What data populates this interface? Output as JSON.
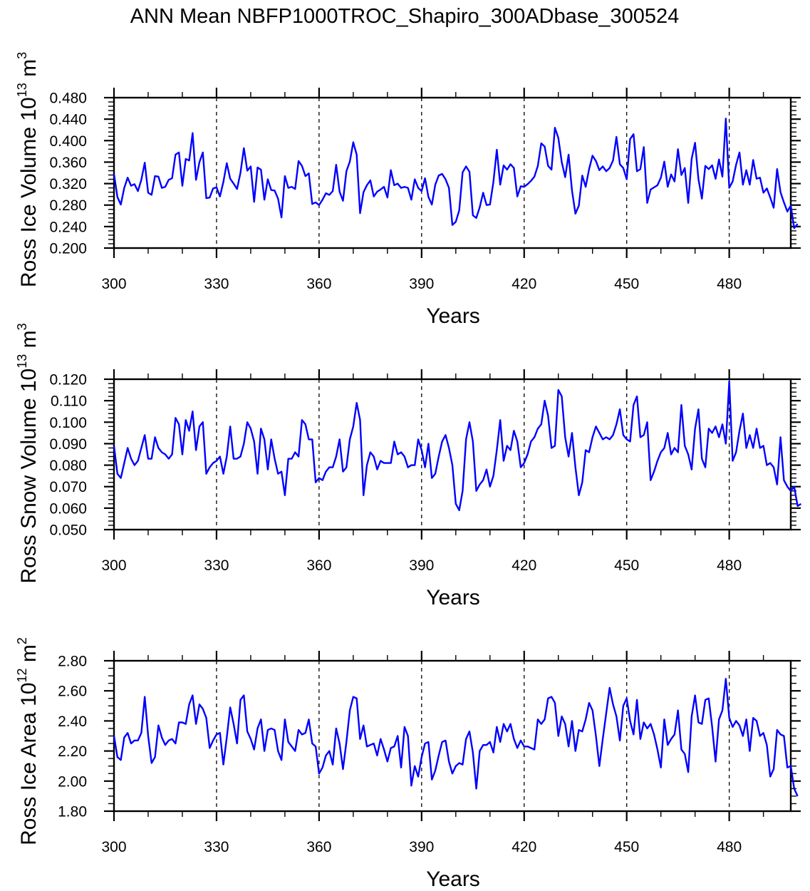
{
  "chart_data": [
    {
      "type": "line",
      "title": "ANN Mean NBFP1000TROC_Shapiro_300ADbase_300524",
      "xlabel": "Years",
      "ylabel": {
        "text": "Ross Ice Volume 10",
        "exponent": "13",
        "unit": " m",
        "unit_exponent": "3"
      },
      "xlim": [
        300,
        498
      ],
      "ylim": [
        0.2,
        0.48
      ],
      "x_ticks": [
        300,
        330,
        360,
        390,
        420,
        450,
        480
      ],
      "x_tick_labels": [
        "300",
        "330",
        "360",
        "390",
        "420",
        "450",
        "480"
      ],
      "y_ticks": [
        0.2,
        0.24,
        0.28,
        0.32,
        0.36,
        0.4,
        0.44,
        0.48
      ],
      "y_tick_labels": [
        "0.200",
        "0.240",
        "0.280",
        "0.320",
        "0.360",
        "0.400",
        "0.440",
        "0.480"
      ],
      "y_minor_step": 0.008,
      "x_minor_step": 10,
      "reference_lines_x": [
        330,
        360,
        390,
        420,
        450,
        480
      ],
      "series": [
        {
          "name": "Ross Ice Volume",
          "color": "#0000ff",
          "x_start": 300,
          "x_step": 1,
          "values": [
            0.338,
            0.295,
            0.281,
            0.312,
            0.331,
            0.316,
            0.319,
            0.306,
            0.327,
            0.359,
            0.303,
            0.299,
            0.334,
            0.333,
            0.312,
            0.314,
            0.327,
            0.33,
            0.374,
            0.378,
            0.316,
            0.366,
            0.363,
            0.414,
            0.327,
            0.36,
            0.378,
            0.293,
            0.294,
            0.311,
            0.313,
            0.296,
            0.323,
            0.358,
            0.329,
            0.32,
            0.31,
            0.34,
            0.386,
            0.344,
            0.352,
            0.286,
            0.35,
            0.346,
            0.29,
            0.328,
            0.308,
            0.307,
            0.292,
            0.257,
            0.334,
            0.312,
            0.314,
            0.31,
            0.362,
            0.353,
            0.334,
            0.339,
            0.282,
            0.285,
            0.28,
            0.29,
            0.302,
            0.299,
            0.306,
            0.355,
            0.305,
            0.288,
            0.343,
            0.361,
            0.397,
            0.374,
            0.265,
            0.304,
            0.317,
            0.326,
            0.296,
            0.305,
            0.309,
            0.314,
            0.294,
            0.345,
            0.317,
            0.32,
            0.312,
            0.314,
            0.312,
            0.29,
            0.328,
            0.312,
            0.306,
            0.33,
            0.295,
            0.281,
            0.318,
            0.335,
            0.338,
            0.328,
            0.312,
            0.243,
            0.249,
            0.27,
            0.341,
            0.352,
            0.342,
            0.261,
            0.256,
            0.276,
            0.303,
            0.28,
            0.281,
            0.323,
            0.383,
            0.318,
            0.354,
            0.346,
            0.356,
            0.349,
            0.296,
            0.315,
            0.314,
            0.319,
            0.325,
            0.333,
            0.353,
            0.395,
            0.389,
            0.353,
            0.346,
            0.424,
            0.405,
            0.36,
            0.332,
            0.374,
            0.307,
            0.264,
            0.279,
            0.335,
            0.314,
            0.347,
            0.372,
            0.362,
            0.345,
            0.352,
            0.343,
            0.349,
            0.363,
            0.407,
            0.356,
            0.349,
            0.328,
            0.403,
            0.412,
            0.343,
            0.347,
            0.388,
            0.284,
            0.309,
            0.313,
            0.317,
            0.331,
            0.361,
            0.314,
            0.337,
            0.324,
            0.384,
            0.336,
            0.349,
            0.284,
            0.366,
            0.396,
            0.328,
            0.292,
            0.353,
            0.347,
            0.354,
            0.329,
            0.365,
            0.333,
            0.441,
            0.312,
            0.324,
            0.355,
            0.378,
            0.318,
            0.345,
            0.318,
            0.364,
            0.329,
            0.331,
            0.303,
            0.311,
            0.294,
            0.275,
            0.347,
            0.304,
            0.285,
            0.268,
            0.279,
            0.237,
            0.245
          ]
        }
      ]
    },
    {
      "type": "line",
      "xlabel": "Years",
      "ylabel": {
        "text": "Ross Snow Volume 10",
        "exponent": "13",
        "unit": " m",
        "unit_exponent": "3"
      },
      "xlim": [
        300,
        498
      ],
      "ylim": [
        0.05,
        0.12
      ],
      "x_ticks": [
        300,
        330,
        360,
        390,
        420,
        450,
        480
      ],
      "x_tick_labels": [
        "300",
        "330",
        "360",
        "390",
        "420",
        "450",
        "480"
      ],
      "y_ticks": [
        0.05,
        0.06,
        0.07,
        0.08,
        0.09,
        0.1,
        0.11,
        0.12
      ],
      "y_tick_labels": [
        "0.050",
        "0.060",
        "0.070",
        "0.080",
        "0.090",
        "0.100",
        "0.110",
        "0.120"
      ],
      "y_minor_step": 0.002,
      "x_minor_step": 10,
      "reference_lines_x": [
        330,
        360,
        390,
        420,
        450,
        480
      ],
      "series": [
        {
          "name": "Ross Snow Volume",
          "color": "#0000ff",
          "x_start": 300,
          "x_step": 1,
          "values": [
            0.089,
            0.076,
            0.074,
            0.081,
            0.088,
            0.083,
            0.08,
            0.082,
            0.088,
            0.094,
            0.083,
            0.083,
            0.093,
            0.088,
            0.086,
            0.085,
            0.083,
            0.085,
            0.102,
            0.099,
            0.085,
            0.101,
            0.096,
            0.105,
            0.087,
            0.098,
            0.1,
            0.076,
            0.079,
            0.081,
            0.082,
            0.084,
            0.076,
            0.084,
            0.098,
            0.083,
            0.083,
            0.084,
            0.09,
            0.1,
            0.097,
            0.091,
            0.076,
            0.097,
            0.092,
            0.078,
            0.092,
            0.083,
            0.076,
            0.077,
            0.066,
            0.083,
            0.083,
            0.086,
            0.084,
            0.101,
            0.099,
            0.092,
            0.092,
            0.072,
            0.074,
            0.073,
            0.077,
            0.079,
            0.079,
            0.084,
            0.092,
            0.077,
            0.079,
            0.092,
            0.098,
            0.109,
            0.101,
            0.066,
            0.08,
            0.086,
            0.084,
            0.078,
            0.082,
            0.081,
            0.081,
            0.081,
            0.091,
            0.085,
            0.086,
            0.084,
            0.079,
            0.08,
            0.08,
            0.092,
            0.087,
            0.079,
            0.09,
            0.074,
            0.076,
            0.084,
            0.091,
            0.094,
            0.088,
            0.08,
            0.062,
            0.059,
            0.068,
            0.092,
            0.1,
            0.091,
            0.068,
            0.071,
            0.073,
            0.078,
            0.07,
            0.075,
            0.087,
            0.101,
            0.082,
            0.089,
            0.087,
            0.096,
            0.091,
            0.079,
            0.081,
            0.085,
            0.091,
            0.093,
            0.097,
            0.099,
            0.11,
            0.103,
            0.088,
            0.089,
            0.115,
            0.112,
            0.093,
            0.084,
            0.095,
            0.079,
            0.066,
            0.072,
            0.087,
            0.086,
            0.093,
            0.098,
            0.095,
            0.092,
            0.093,
            0.092,
            0.094,
            0.099,
            0.106,
            0.094,
            0.092,
            0.091,
            0.108,
            0.112,
            0.093,
            0.094,
            0.1,
            0.073,
            0.077,
            0.082,
            0.086,
            0.088,
            0.095,
            0.085,
            0.088,
            0.086,
            0.108,
            0.089,
            0.085,
            0.078,
            0.097,
            0.106,
            0.083,
            0.079,
            0.097,
            0.095,
            0.098,
            0.093,
            0.099,
            0.09,
            0.119,
            0.082,
            0.086,
            0.096,
            0.104,
            0.088,
            0.094,
            0.088,
            0.097,
            0.088,
            0.089,
            0.08,
            0.081,
            0.079,
            0.071,
            0.093,
            0.073,
            0.07,
            0.068,
            0.07,
            0.061,
            0.062
          ]
        }
      ]
    },
    {
      "type": "line",
      "xlabel": "Years",
      "ylabel": {
        "text": "Ross Ice Area 10",
        "exponent": "12",
        "unit": " m",
        "unit_exponent": "2"
      },
      "xlim": [
        300,
        498
      ],
      "ylim": [
        1.8,
        2.8
      ],
      "x_ticks": [
        300,
        330,
        360,
        390,
        420,
        450,
        480
      ],
      "x_tick_labels": [
        "300",
        "330",
        "360",
        "390",
        "420",
        "450",
        "480"
      ],
      "y_ticks": [
        1.8,
        2.0,
        2.2,
        2.4,
        2.6,
        2.8
      ],
      "y_tick_labels": [
        "1.80",
        "2.00",
        "2.20",
        "2.40",
        "2.60",
        "2.80"
      ],
      "y_minor_step": 0.05,
      "x_minor_step": 10,
      "reference_lines_x": [
        330,
        360,
        390,
        420,
        450,
        480
      ],
      "series": [
        {
          "name": "Ross Ice Area",
          "color": "#0000ff",
          "x_start": 300,
          "x_step": 1,
          "values": [
            2.3,
            2.16,
            2.14,
            2.29,
            2.32,
            2.25,
            2.27,
            2.27,
            2.32,
            2.56,
            2.3,
            2.12,
            2.16,
            2.37,
            2.29,
            2.24,
            2.27,
            2.28,
            2.25,
            2.39,
            2.39,
            2.38,
            2.51,
            2.57,
            2.38,
            2.51,
            2.48,
            2.42,
            2.22,
            2.27,
            2.31,
            2.32,
            2.11,
            2.29,
            2.49,
            2.38,
            2.25,
            2.54,
            2.57,
            2.33,
            2.28,
            2.21,
            2.35,
            2.41,
            2.2,
            2.34,
            2.35,
            2.34,
            2.2,
            2.14,
            2.41,
            2.26,
            2.23,
            2.2,
            2.34,
            2.31,
            2.32,
            2.41,
            2.25,
            2.23,
            2.05,
            2.09,
            2.17,
            2.2,
            2.11,
            2.35,
            2.25,
            2.08,
            2.26,
            2.47,
            2.56,
            2.55,
            2.28,
            2.37,
            2.23,
            2.24,
            2.25,
            2.17,
            2.28,
            2.21,
            2.13,
            2.22,
            2.23,
            2.3,
            2.09,
            2.36,
            2.3,
            1.97,
            2.1,
            2.03,
            2.16,
            2.25,
            2.26,
            2.01,
            2.07,
            2.17,
            2.26,
            2.27,
            2.13,
            2.05,
            2.1,
            2.12,
            2.11,
            2.28,
            2.33,
            2.19,
            1.95,
            2.2,
            2.24,
            2.24,
            2.26,
            2.19,
            2.36,
            2.26,
            2.38,
            2.33,
            2.38,
            2.28,
            2.22,
            2.27,
            2.23,
            2.23,
            2.22,
            2.21,
            2.41,
            2.38,
            2.41,
            2.55,
            2.56,
            2.52,
            2.3,
            2.43,
            2.38,
            2.23,
            2.4,
            2.2,
            2.34,
            2.33,
            2.41,
            2.52,
            2.47,
            2.3,
            2.1,
            2.28,
            2.45,
            2.62,
            2.51,
            2.43,
            2.27,
            2.5,
            2.55,
            2.4,
            2.31,
            2.54,
            2.28,
            2.39,
            2.35,
            2.38,
            2.31,
            2.21,
            2.09,
            2.41,
            2.24,
            2.28,
            2.31,
            2.47,
            2.21,
            2.18,
            2.06,
            2.43,
            2.57,
            2.39,
            2.38,
            2.54,
            2.55,
            2.36,
            2.13,
            2.41,
            2.47,
            2.68,
            2.42,
            2.36,
            2.4,
            2.37,
            2.3,
            2.41,
            2.2,
            2.42,
            2.4,
            2.3,
            2.32,
            2.24,
            2.03,
            2.08,
            2.34,
            2.31,
            2.3,
            2.09,
            2.1,
            1.95,
            1.9
          ]
        }
      ]
    }
  ]
}
